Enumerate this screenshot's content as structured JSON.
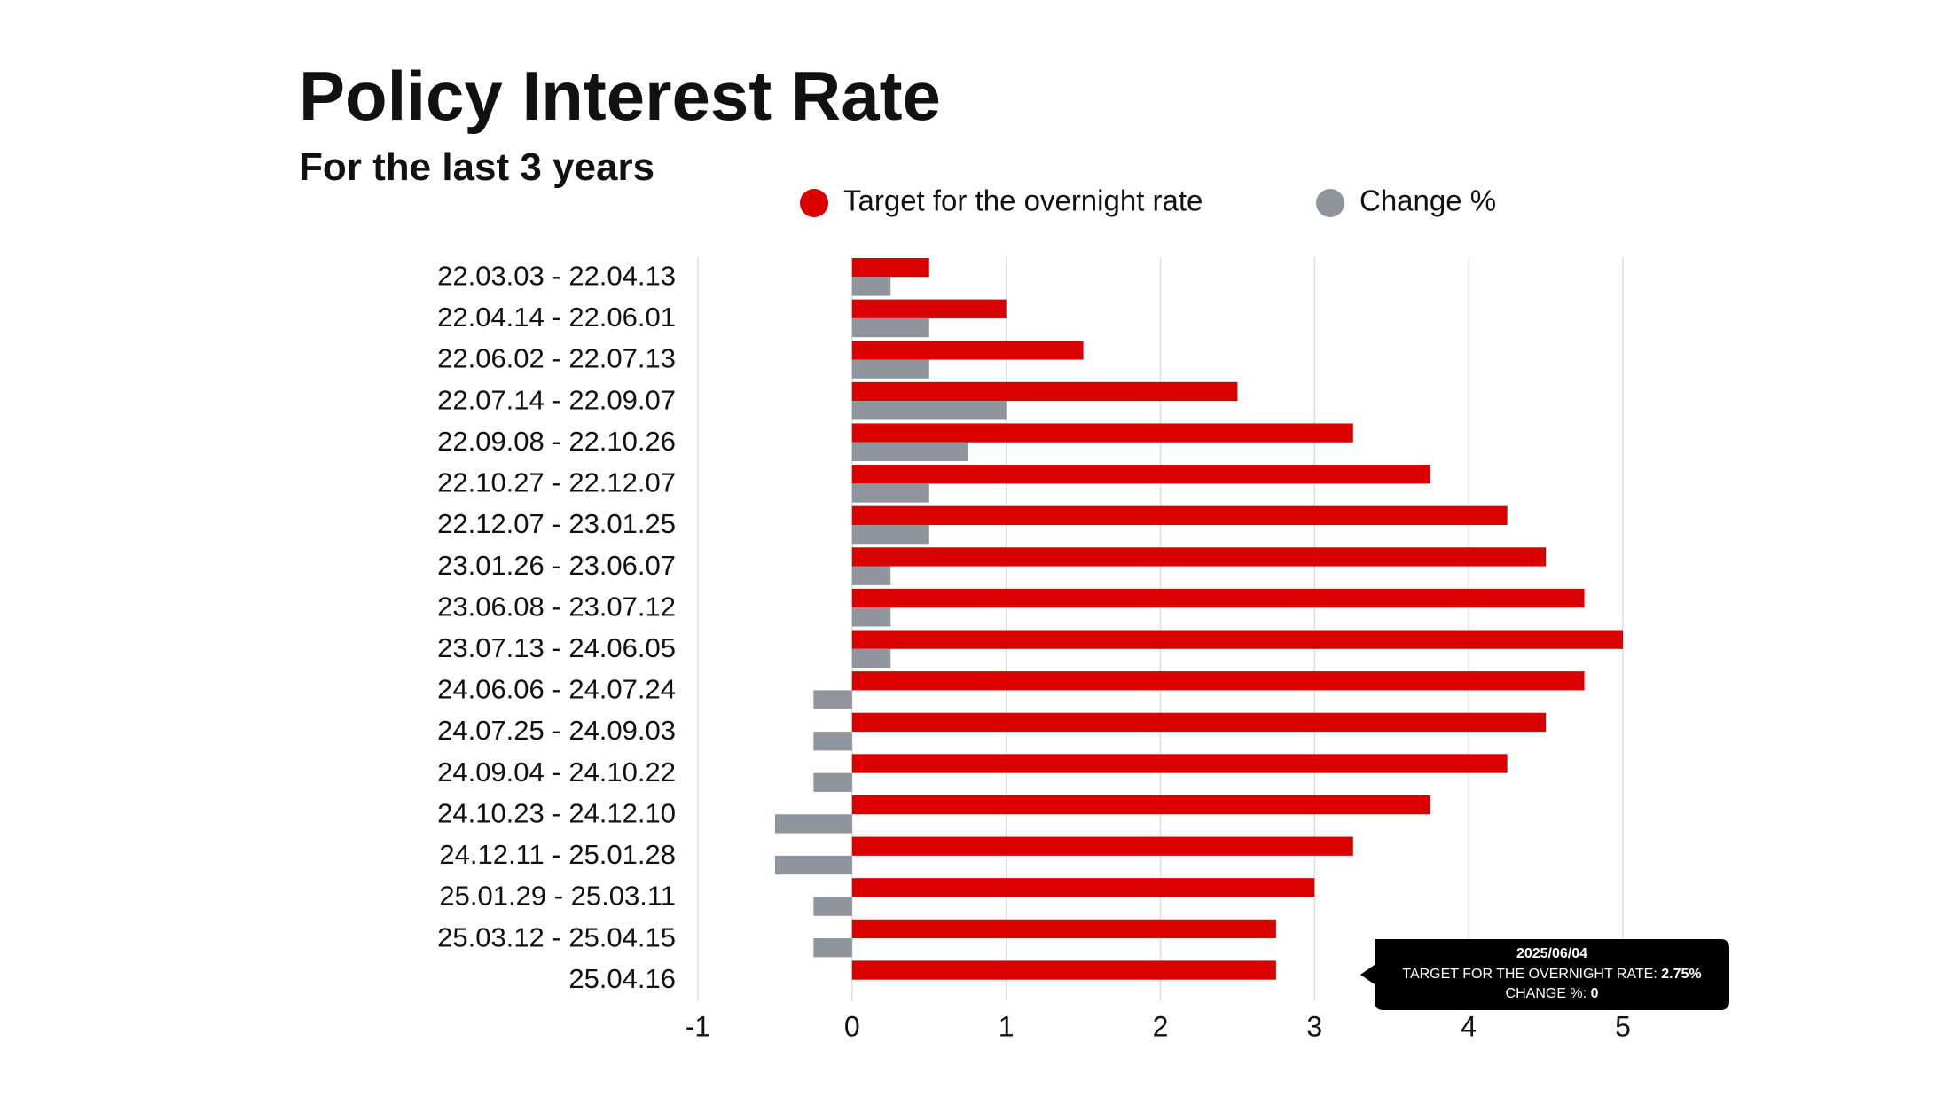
{
  "chart_data": {
    "type": "hbar",
    "title": "Policy Interest Rate",
    "subtitle": "For the last 3 years",
    "categories": [
      "22.03.03 - 22.04.13",
      "22.04.14 - 22.06.01",
      "22.06.02 - 22.07.13",
      "22.07.14 - 22.09.07",
      "22.09.08 - 22.10.26",
      "22.10.27 - 22.12.07",
      "22.12.07 - 23.01.25",
      "23.01.26 - 23.06.07",
      "23.06.08 - 23.07.12",
      "23.07.13 - 24.06.05",
      "24.06.06 - 24.07.24",
      "24.07.25 - 24.09.03",
      "24.09.04 - 24.10.22",
      "24.10.23 - 24.12.10",
      "24.12.11 - 25.01.28",
      "25.01.29 - 25.03.11",
      "25.03.12 - 25.04.15",
      "25.04.16"
    ],
    "series": [
      {
        "name": "Target for the overnight rate",
        "color": "#d90000",
        "values": [
          0.5,
          1,
          1.5,
          2.5,
          3.25,
          3.75,
          4.25,
          4.5,
          4.75,
          5,
          4.75,
          4.5,
          4.25,
          3.75,
          3.25,
          3,
          2.75,
          2.75
        ]
      },
      {
        "name": "Change %",
        "color": "#8e959c",
        "values": [
          0.25,
          0.5,
          0.5,
          1,
          0.75,
          0.5,
          0.5,
          0.25,
          0.25,
          0.25,
          -0.25,
          -0.25,
          -0.25,
          -0.5,
          -0.5,
          -0.25,
          -0.25,
          0
        ]
      }
    ],
    "xlim": [
      -1,
      5
    ],
    "xticks": [
      -1,
      0,
      1,
      2,
      3,
      4,
      5
    ],
    "grid": true,
    "tooltip": {
      "title": "2025/06/04",
      "lines": [
        {
          "label": "TARGET FOR THE OVERNIGHT RATE:",
          "value": "2.75%"
        },
        {
          "label": "CHANGE %:",
          "value": "0"
        }
      ]
    }
  }
}
